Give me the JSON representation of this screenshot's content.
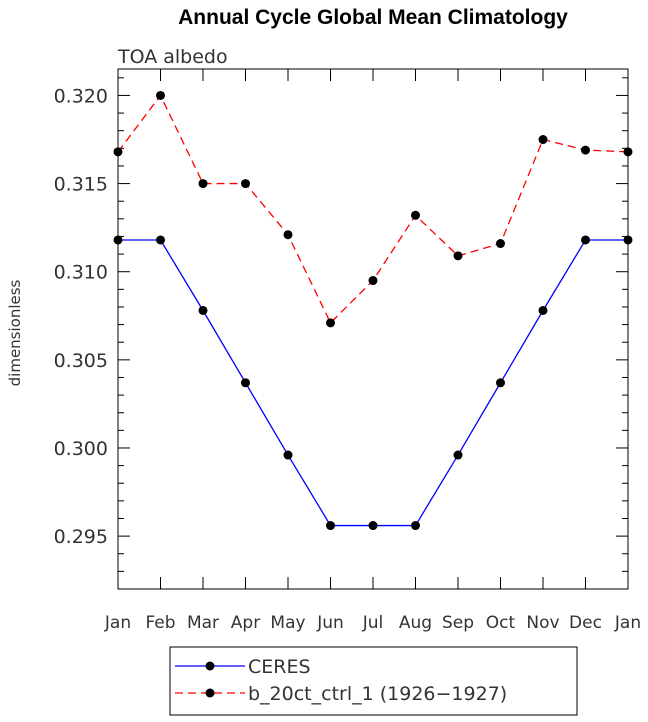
{
  "chart_data": {
    "type": "line",
    "title": "Annual Cycle Global Mean Climatology",
    "subtitle": "TOA albedo",
    "ylabel": "dimensionless",
    "xlabel": "",
    "categories": [
      "Jan",
      "Feb",
      "Mar",
      "Apr",
      "May",
      "Jun",
      "Jul",
      "Aug",
      "Sep",
      "Oct",
      "Nov",
      "Dec",
      "Jan"
    ],
    "ylim": [
      0.292,
      0.3215
    ],
    "yticks": [
      0.295,
      0.3,
      0.305,
      0.31,
      0.315,
      0.32
    ],
    "ytick_labels": [
      "0.295",
      "0.300",
      "0.305",
      "0.310",
      "0.315",
      "0.320"
    ],
    "grid": false,
    "legend_position": "bottom",
    "series": [
      {
        "name": "CERES",
        "color": "#0000ff",
        "dash": "solid",
        "values": [
          0.3118,
          0.3118,
          0.3078,
          0.3037,
          0.2996,
          0.2956,
          0.2956,
          0.2956,
          0.2996,
          0.3037,
          0.3078,
          0.3118,
          0.3118
        ]
      },
      {
        "name": "b_20ct_ctrl_1 (1926−1927)",
        "color": "#ff0000",
        "dash": "dashed",
        "values": [
          0.3168,
          0.32,
          0.315,
          0.315,
          0.3121,
          0.3071,
          0.3095,
          0.3132,
          0.3109,
          0.3116,
          0.3175,
          0.3169,
          0.3168
        ]
      }
    ]
  }
}
